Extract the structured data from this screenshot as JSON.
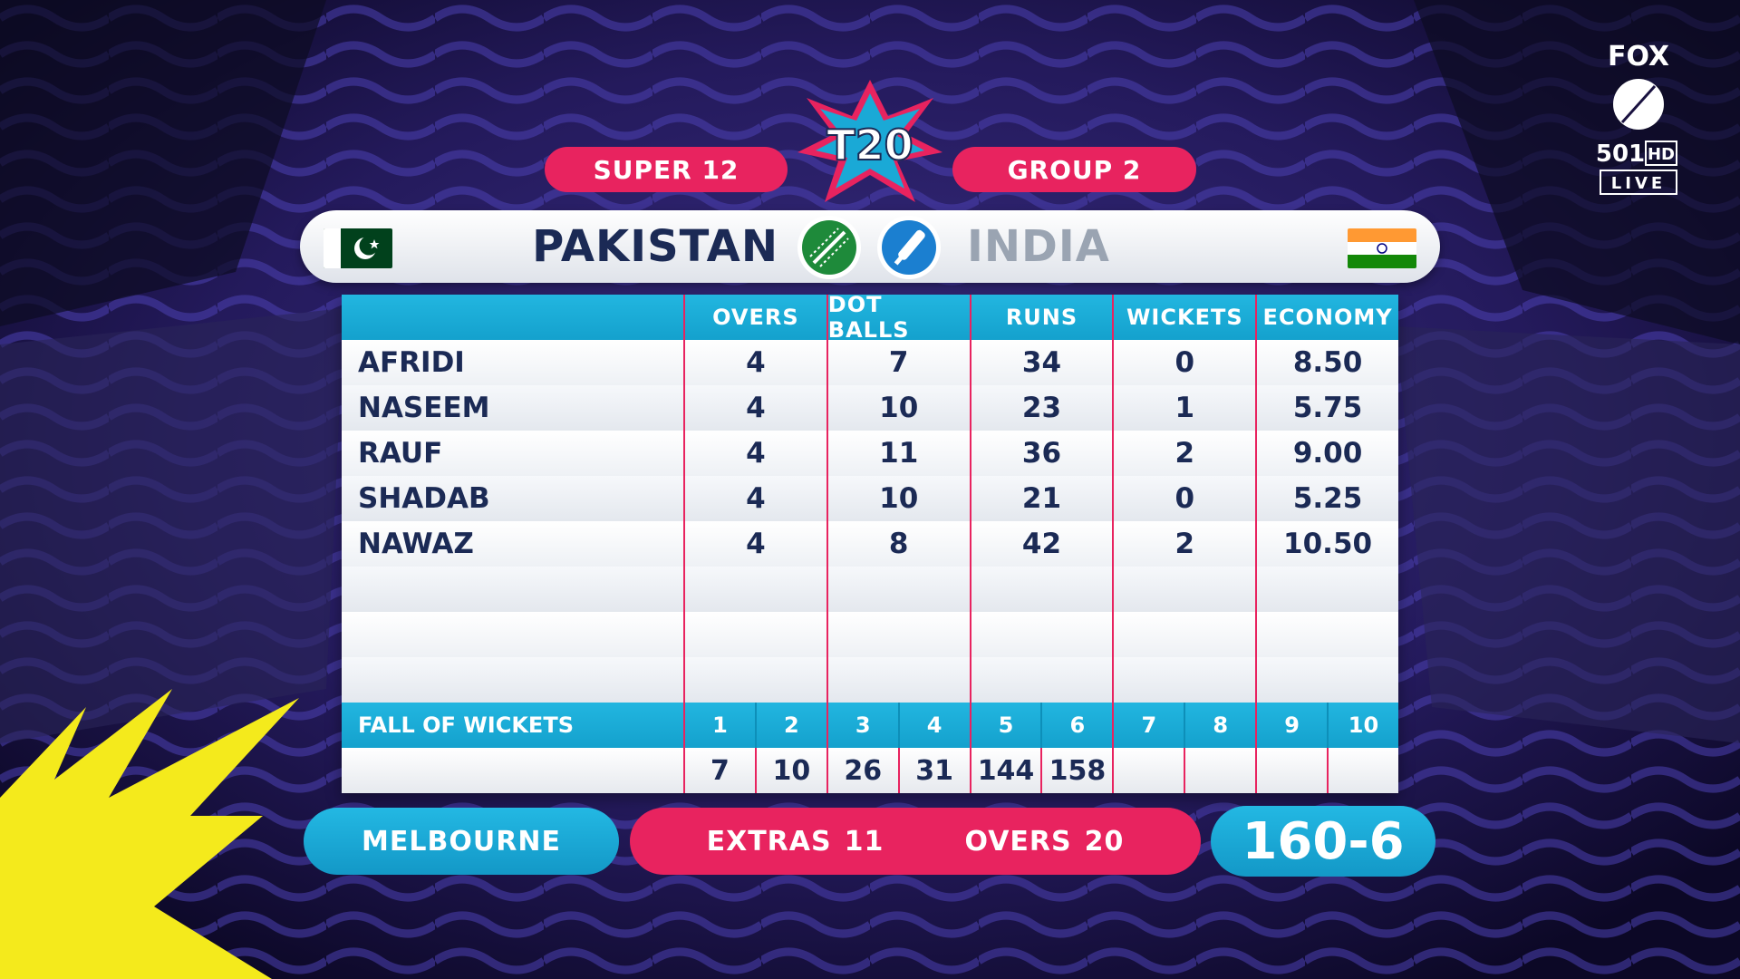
{
  "header": {
    "stage": "SUPER 12",
    "group": "GROUP 2",
    "logo_text": "T20"
  },
  "teams": {
    "bowling": {
      "name": "PAKISTAN",
      "flag": "pakistan-flag",
      "role_icon": "cricket-ball-icon"
    },
    "batting": {
      "name": "INDIA",
      "flag": "india-flag",
      "role_icon": "cricket-bat-icon"
    }
  },
  "table": {
    "columns": [
      "OVERS",
      "DOT BALLS",
      "RUNS",
      "WICKETS",
      "ECONOMY"
    ],
    "rows": [
      {
        "name": "AFRIDI",
        "overs": "4",
        "dots": "7",
        "runs": "34",
        "wickets": "0",
        "economy": "8.50"
      },
      {
        "name": "NASEEM",
        "overs": "4",
        "dots": "10",
        "runs": "23",
        "wickets": "1",
        "economy": "5.75"
      },
      {
        "name": "RAUF",
        "overs": "4",
        "dots": "11",
        "runs": "36",
        "wickets": "2",
        "economy": "9.00"
      },
      {
        "name": "SHADAB",
        "overs": "4",
        "dots": "10",
        "runs": "21",
        "wickets": "0",
        "economy": "5.25"
      },
      {
        "name": "NAWAZ",
        "overs": "4",
        "dots": "8",
        "runs": "42",
        "wickets": "2",
        "economy": "10.50"
      },
      {
        "name": "",
        "overs": "",
        "dots": "",
        "runs": "",
        "wickets": "",
        "economy": ""
      },
      {
        "name": "",
        "overs": "",
        "dots": "",
        "runs": "",
        "wickets": "",
        "economy": ""
      },
      {
        "name": "",
        "overs": "",
        "dots": "",
        "runs": "",
        "wickets": "",
        "economy": ""
      }
    ]
  },
  "fall_of_wickets": {
    "label": "FALL OF WICKETS",
    "numbers": [
      "1",
      "2",
      "3",
      "4",
      "5",
      "6",
      "7",
      "8",
      "9",
      "10"
    ],
    "scores": [
      "7",
      "10",
      "26",
      "31",
      "144",
      "158",
      "",
      "",
      "",
      ""
    ]
  },
  "footer": {
    "venue": "MELBOURNE",
    "extras_label": "EXTRAS",
    "extras_value": "11",
    "overs_label": "OVERS",
    "overs_value": "20",
    "total": "160-6"
  },
  "channel": {
    "network": "FOX",
    "number": "501",
    "quality": "HD",
    "status": "LIVE"
  },
  "colors": {
    "pink": "#e8235f",
    "cyan": "#1aa9d6",
    "navy_text": "#1b2a55",
    "burst_yellow": "#f4ea1c"
  }
}
